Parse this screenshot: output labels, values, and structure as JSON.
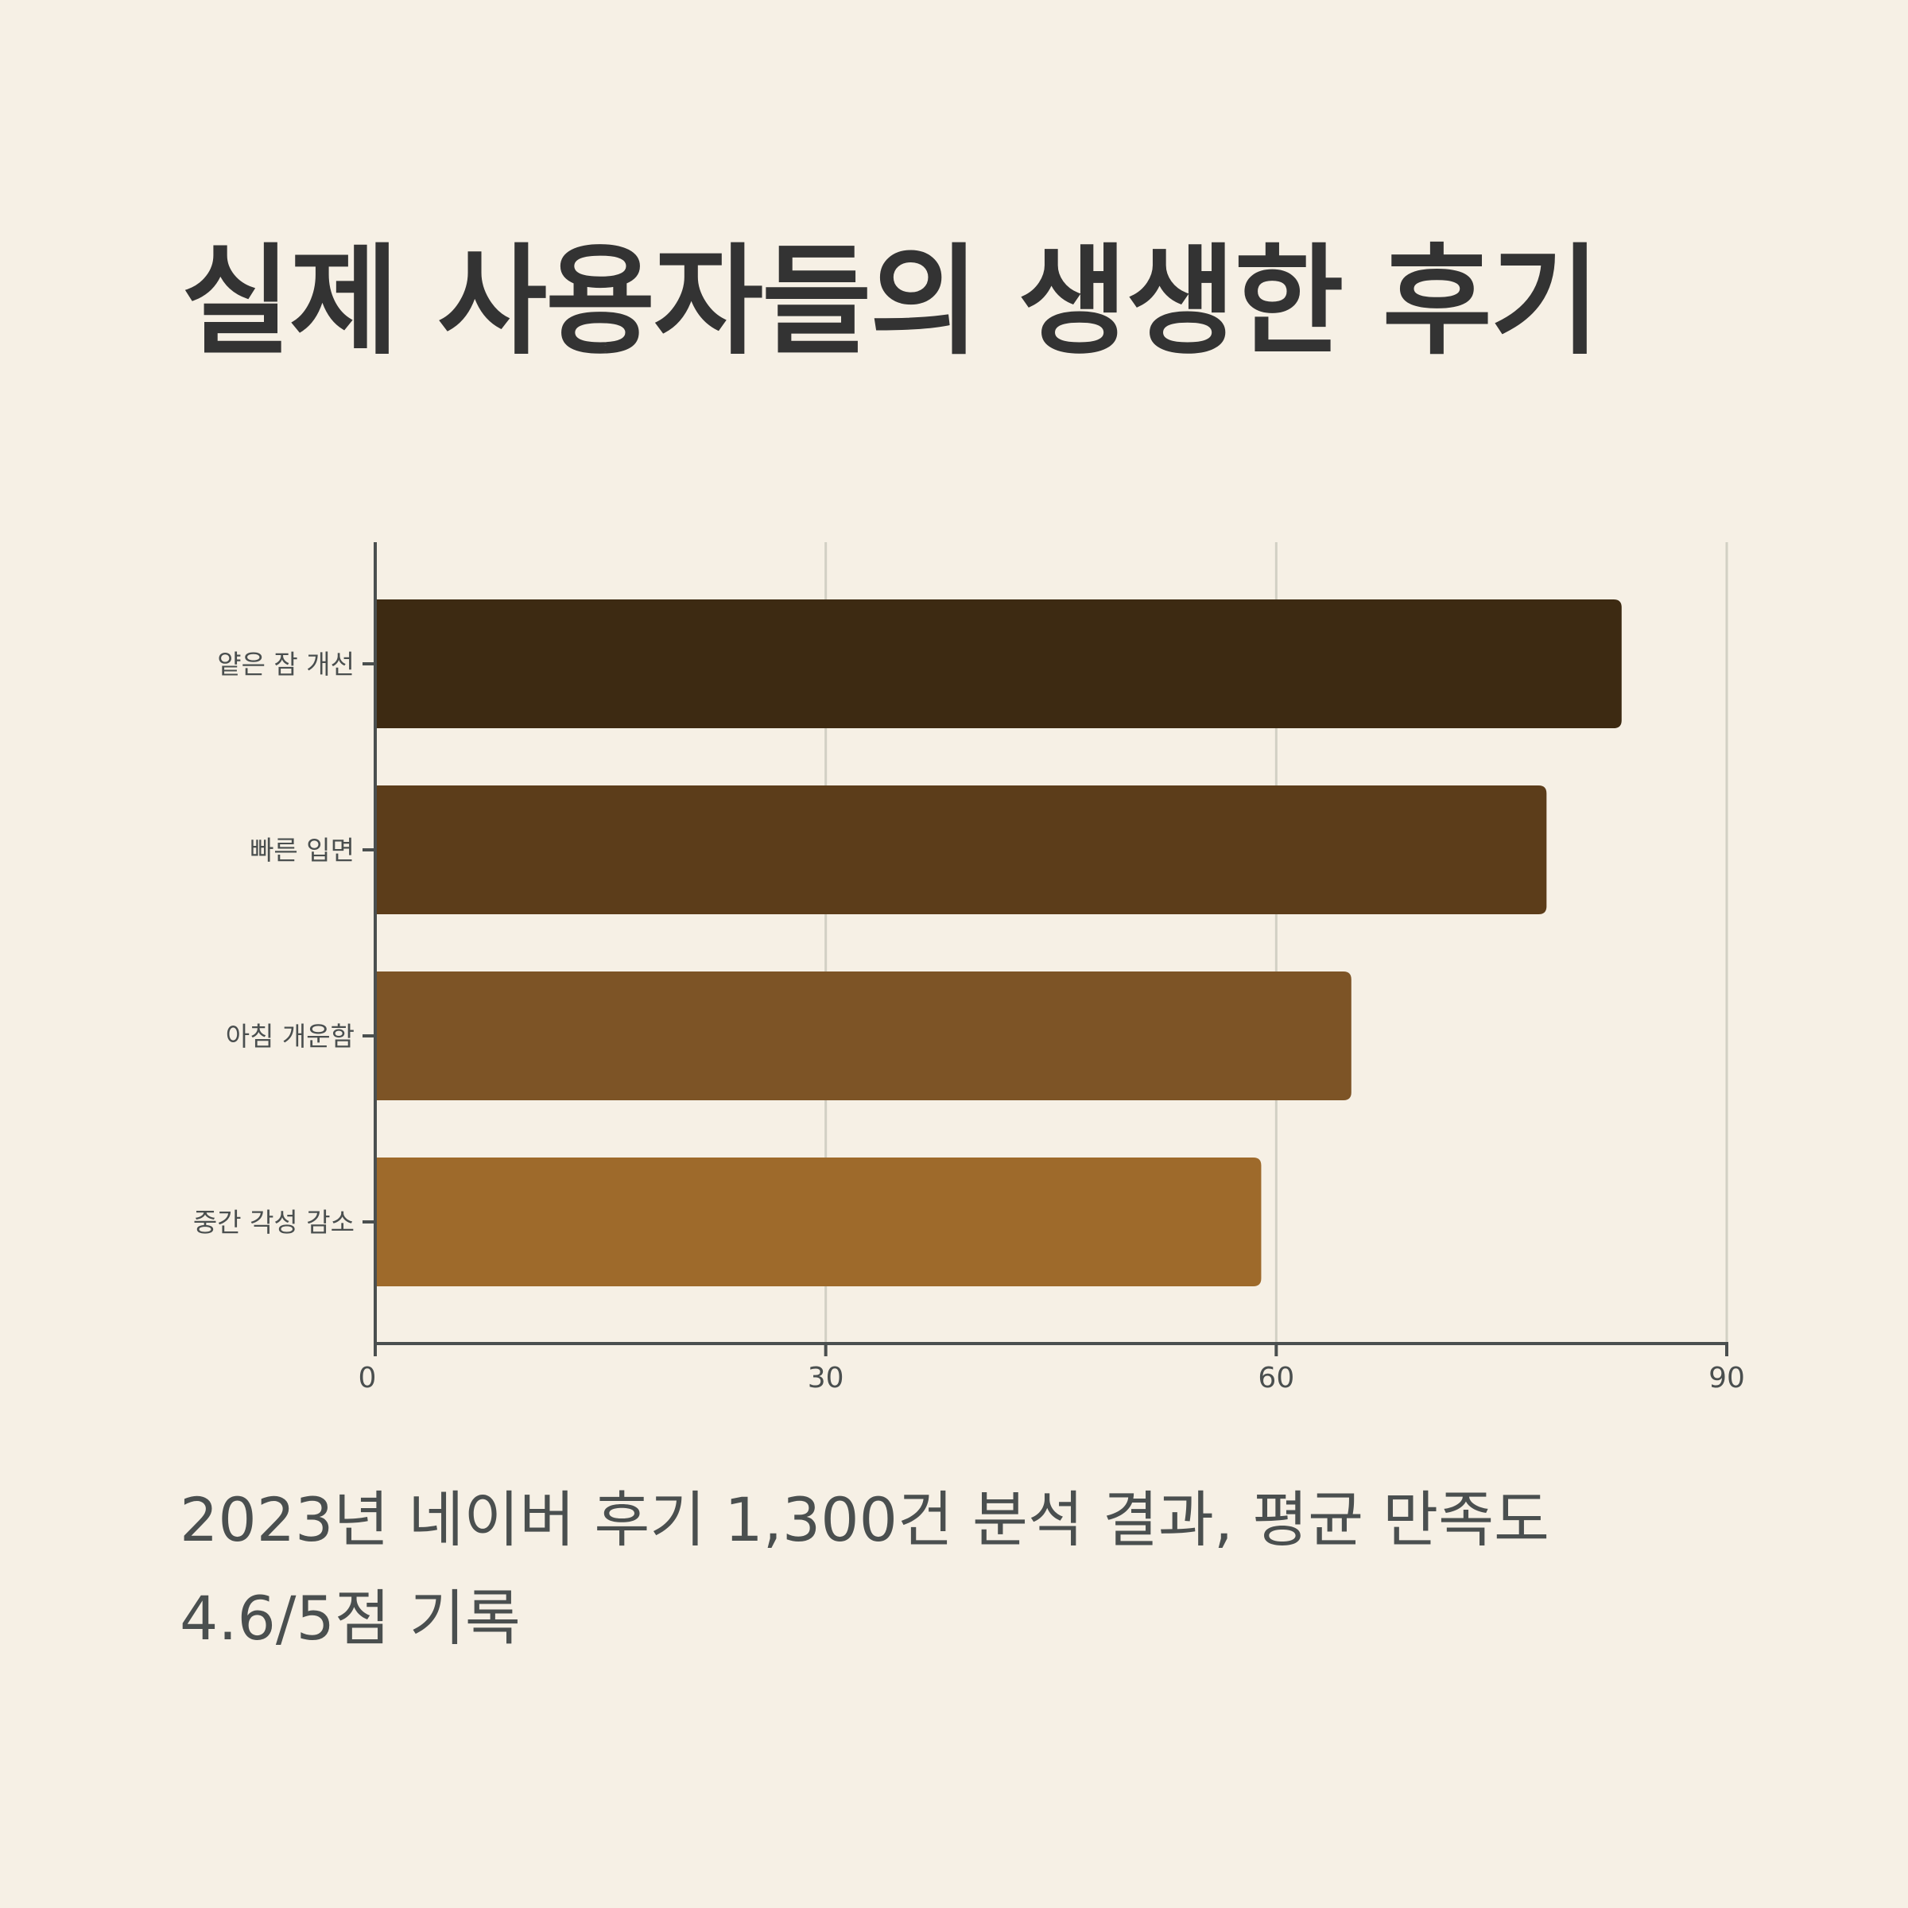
{
  "title": "실제 사용자들의 생생한 후기",
  "caption": {
    "line1": "2023년 네이버 후기 1,300건 분석 결과, 평균 만족도",
    "line2": "4.6/5점 기록"
  },
  "chart_data": {
    "type": "bar",
    "orientation": "horizontal",
    "categories": [
      "얕은 잠 개선",
      "빠른 입면",
      "아침 개운함",
      "중간 각성 감소"
    ],
    "values": [
      83,
      78,
      65,
      59
    ],
    "colors": [
      "#3d2a12",
      "#5c3d1a",
      "#7d5426",
      "#9e6a2b"
    ],
    "xlim": [
      0,
      90
    ],
    "xticks": [
      0,
      30,
      60,
      90
    ],
    "grid": "vertical",
    "legend": "none",
    "title": "",
    "xlabel": "",
    "ylabel": ""
  },
  "colors": {
    "background": "#f6f0e5",
    "axis": "#4a4f4f",
    "grid": "#d2d0c4",
    "title": "#333333",
    "caption": "#4a4f4f"
  }
}
